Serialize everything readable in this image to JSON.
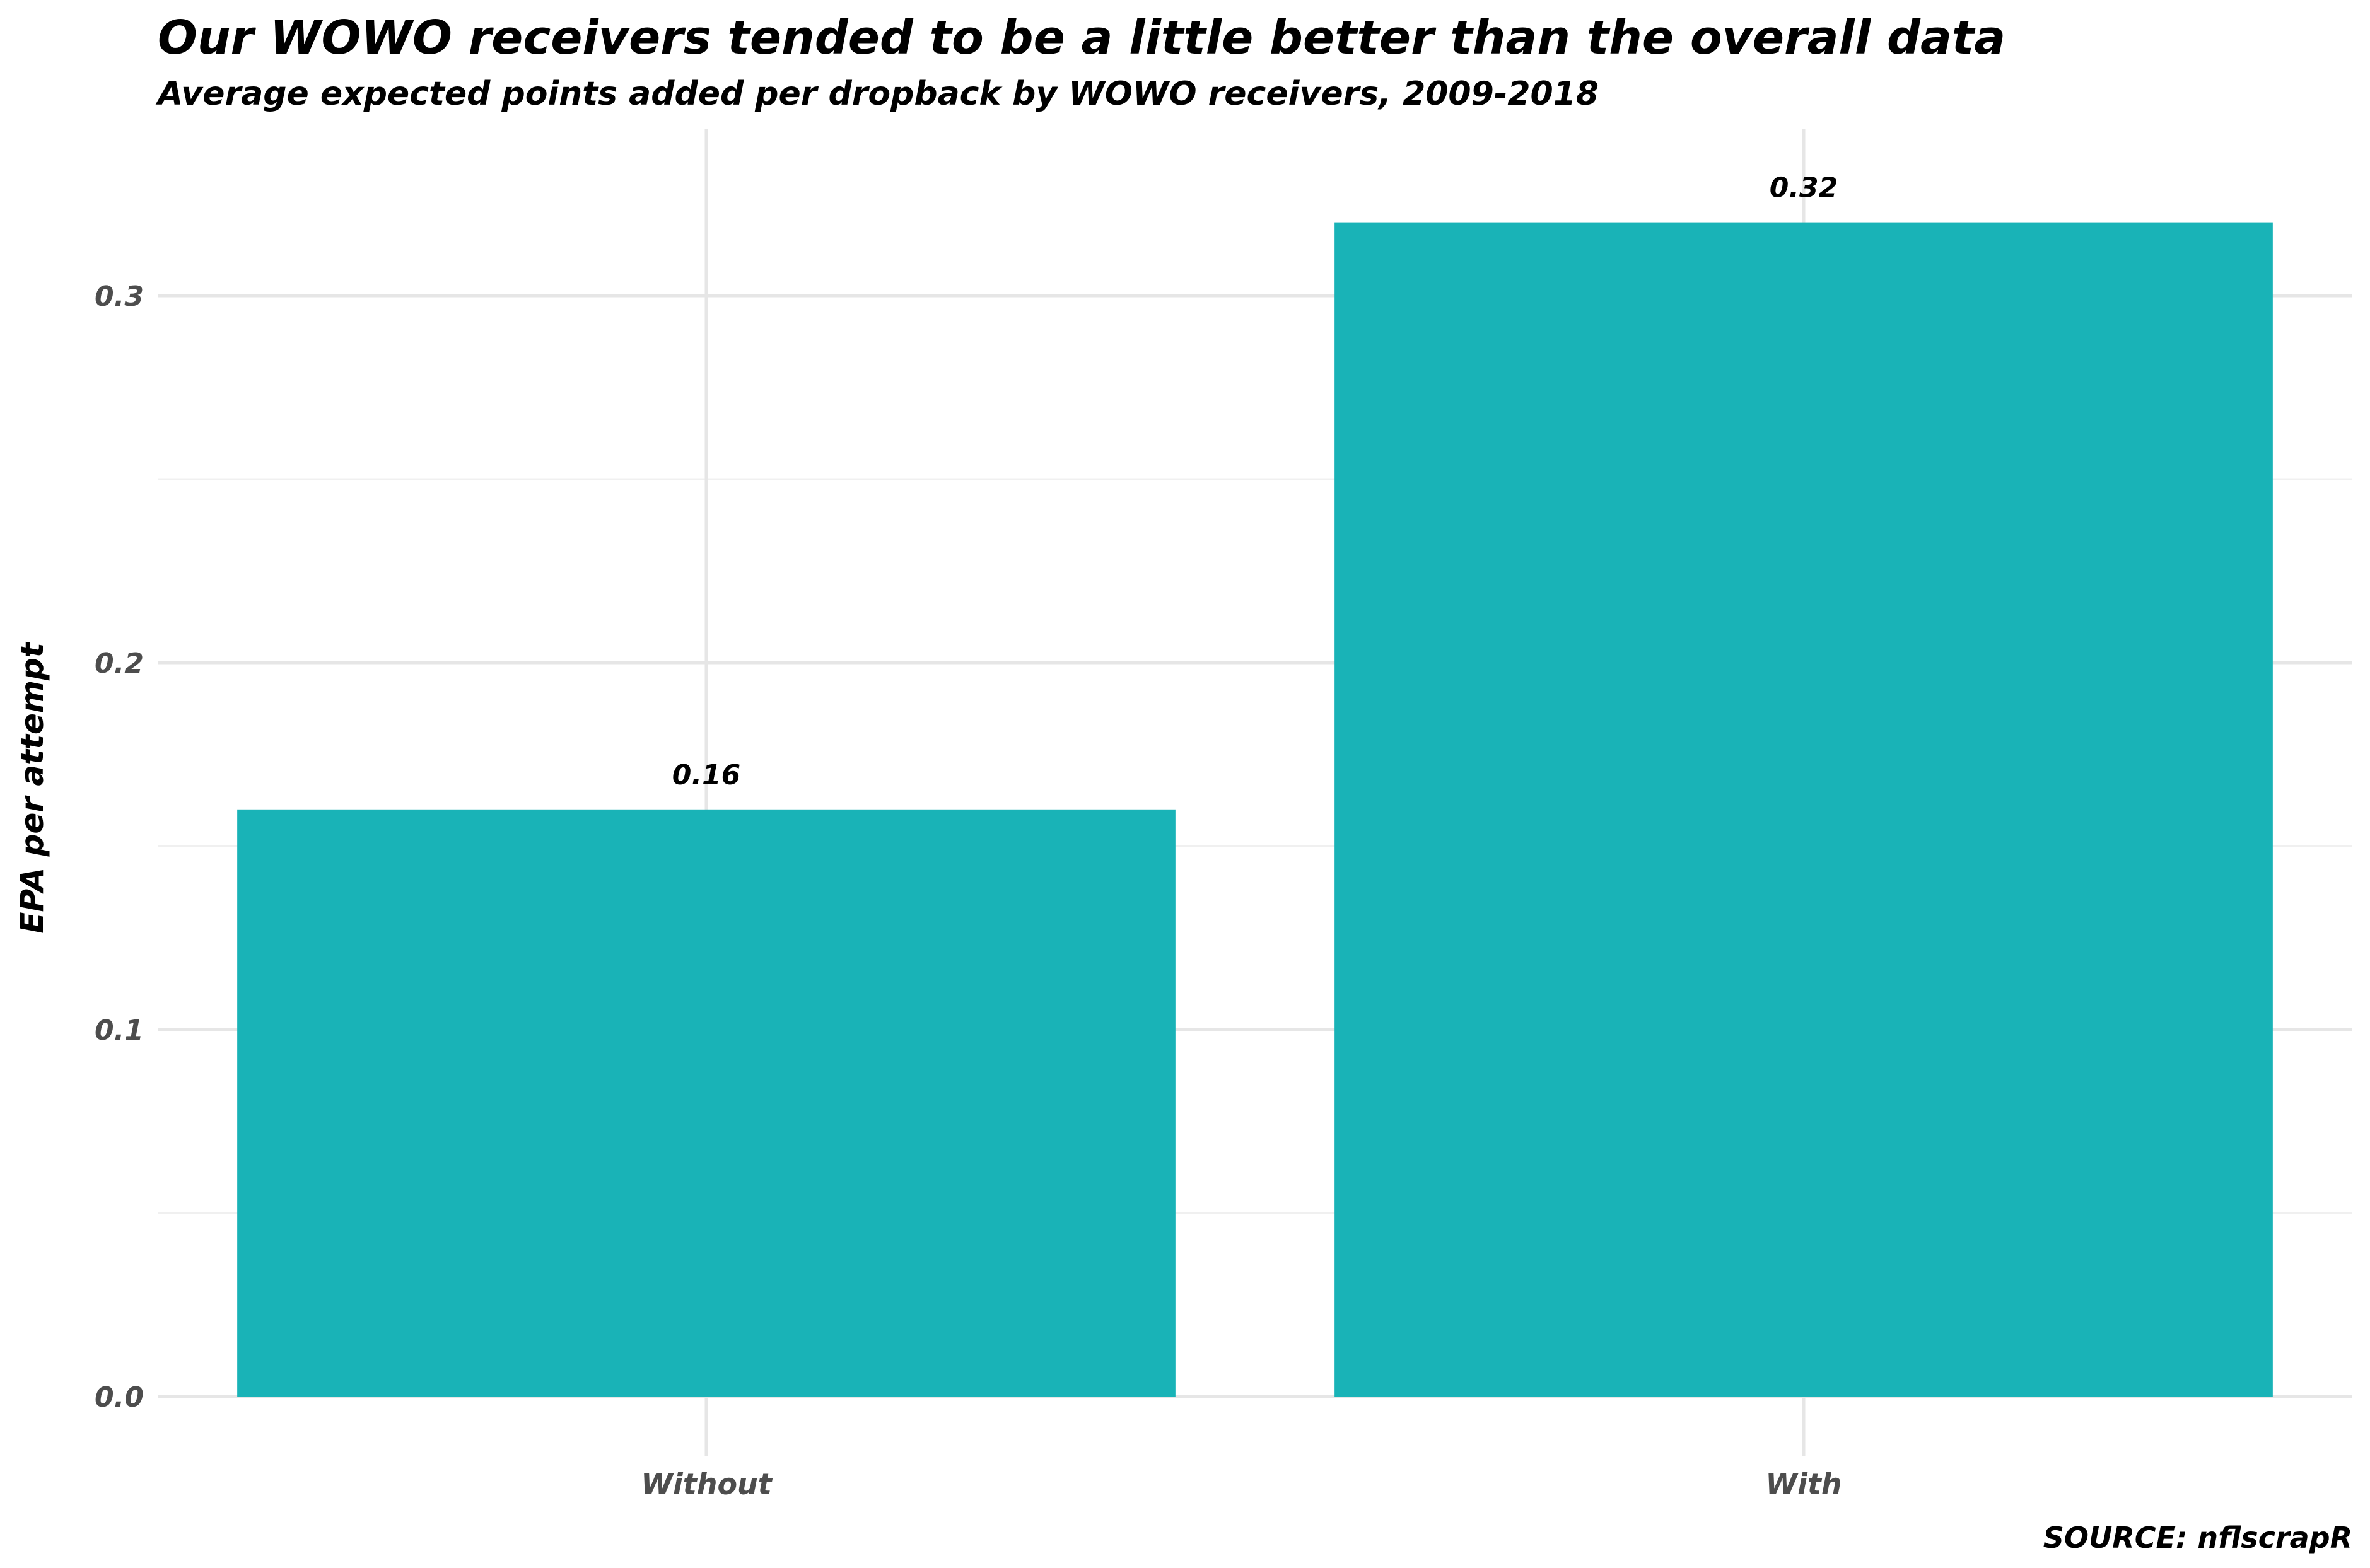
{
  "chart_data": {
    "type": "bar",
    "title": "Our WOWO receivers tended to be a little better than the overall data",
    "subtitle": "Average expected points added per dropback by WOWO receivers, 2009-2018",
    "xlabel": "",
    "ylabel": "EPA per attempt",
    "caption": "SOURCE: nflscrapR",
    "categories": [
      "Without",
      "With"
    ],
    "values": [
      0.16,
      0.32
    ],
    "data_labels": [
      "0.16",
      "0.32"
    ],
    "yticks": [
      0.0,
      0.1,
      0.2,
      0.3
    ],
    "ytick_labels": [
      "0.0",
      "0.1",
      "0.2",
      "0.3"
    ],
    "ylim": [
      0,
      0.34
    ],
    "bar_color": "#19b3b7",
    "grid": true,
    "legend": "none"
  }
}
